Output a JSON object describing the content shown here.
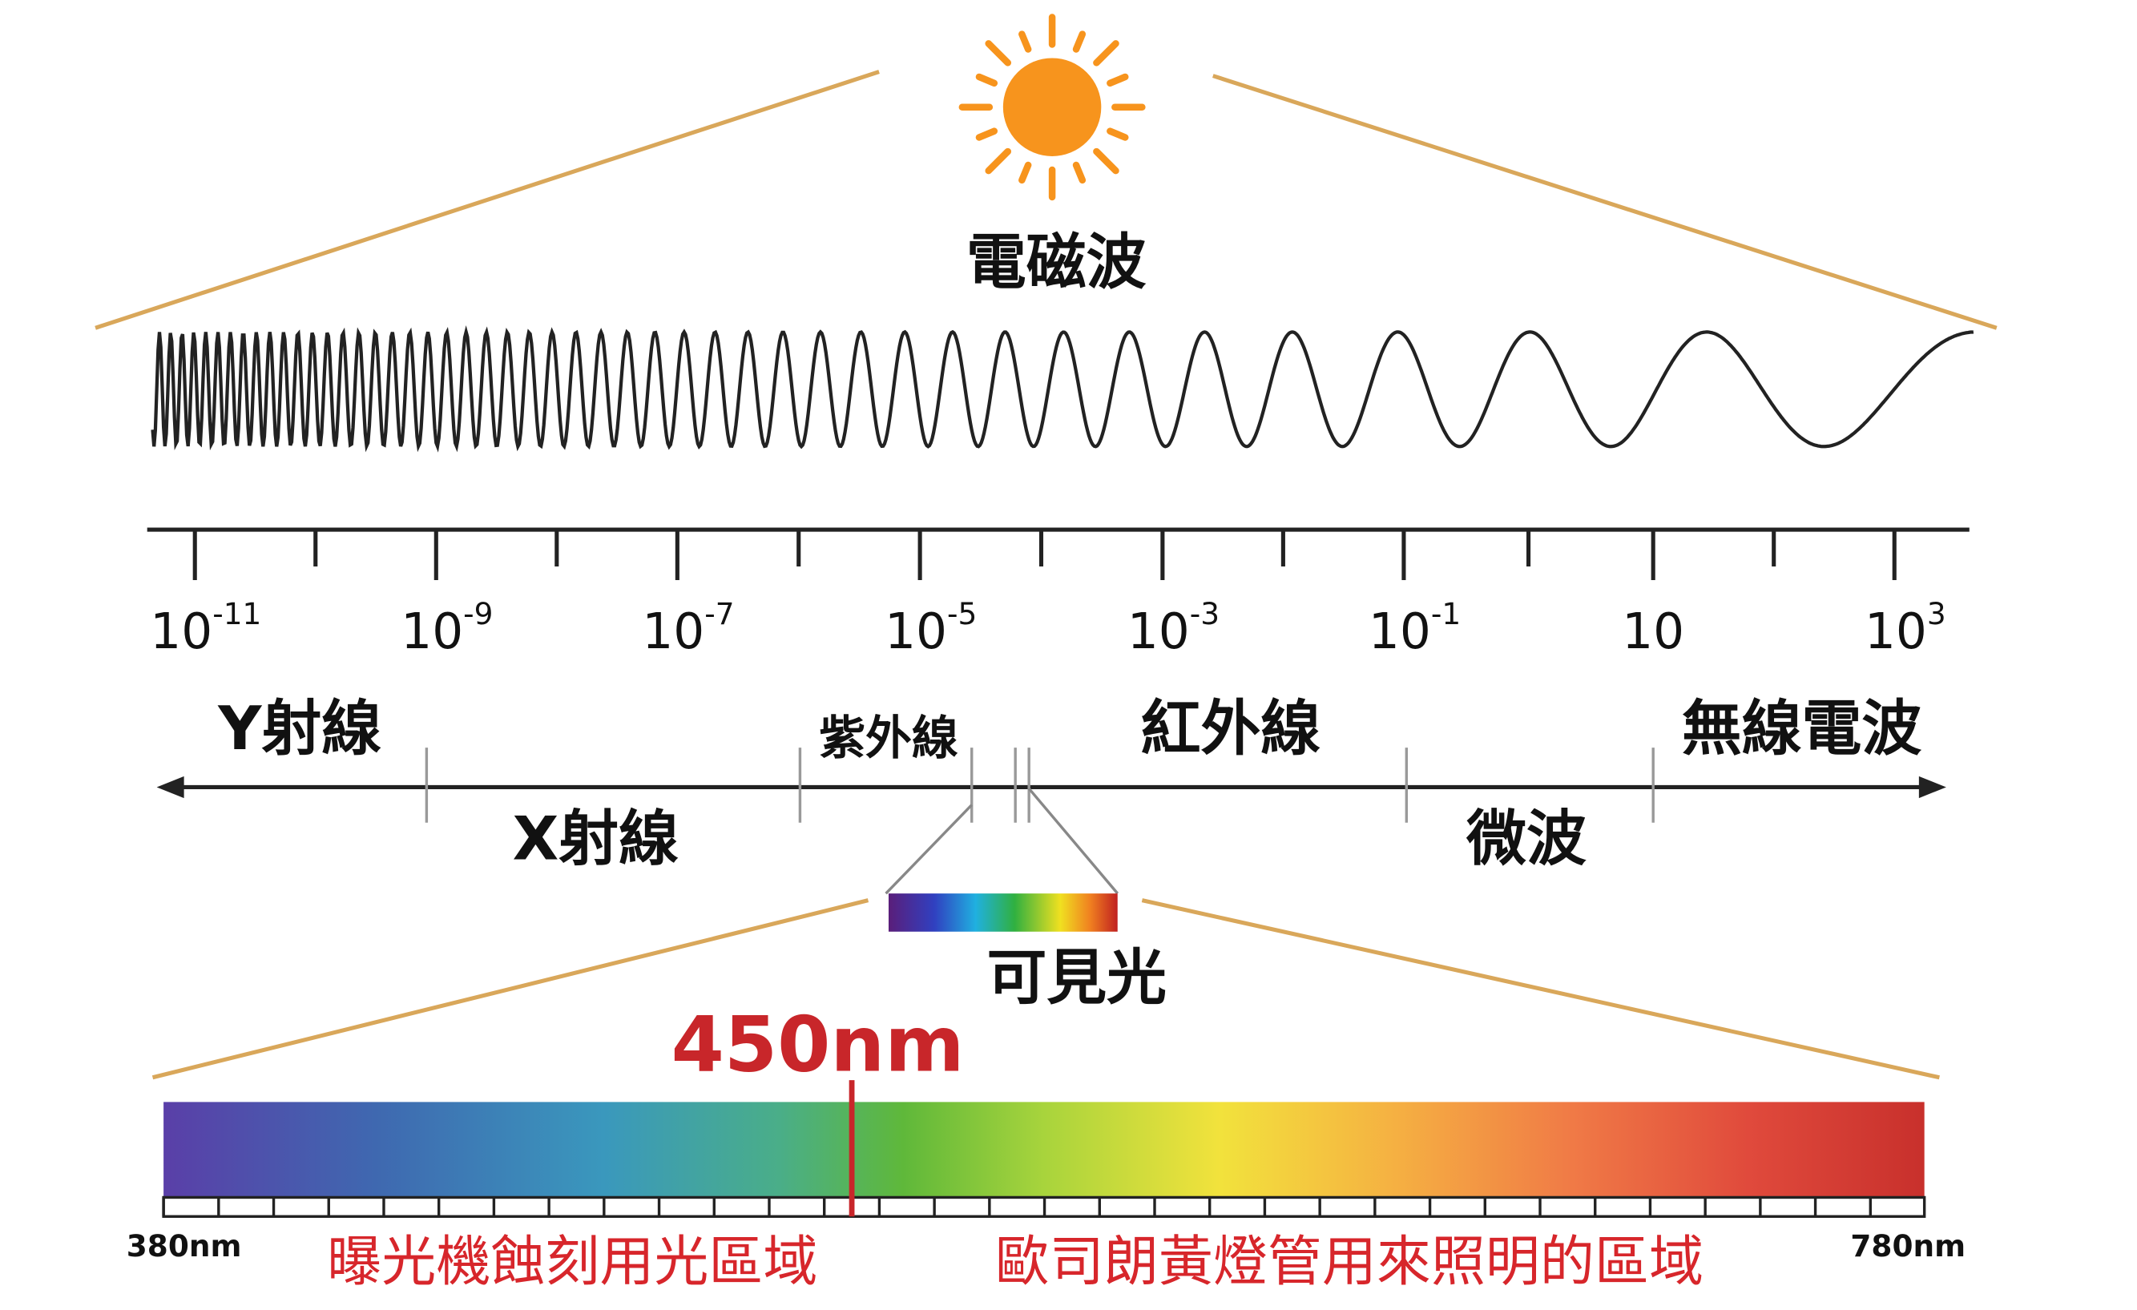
{
  "title": "電磁波",
  "scale": {
    "labels": [
      {
        "base": "10",
        "exponent": "-11"
      },
      {
        "base": "10",
        "exponent": "-9"
      },
      {
        "base": "10",
        "exponent": "-7"
      },
      {
        "base": "10",
        "exponent": "-5"
      },
      {
        "base": "10",
        "exponent": "-3"
      },
      {
        "base": "10",
        "exponent": "-1"
      },
      {
        "base": "10"
      },
      {
        "base": "10",
        "exponent": "3"
      }
    ]
  },
  "bands": {
    "gamma": "Y射線",
    "xray": "X射線",
    "uv": "紫外線",
    "ir": "紅外線",
    "microwave": "微波",
    "radio": "無線電波",
    "visible": "可見光"
  },
  "spectrum": {
    "marker": "450nm",
    "start": "380nm",
    "end": "780nm",
    "captions": [
      "曝光機蝕刻用光區域",
      "歐司朗黃燈管用來照明的區域"
    ]
  }
}
